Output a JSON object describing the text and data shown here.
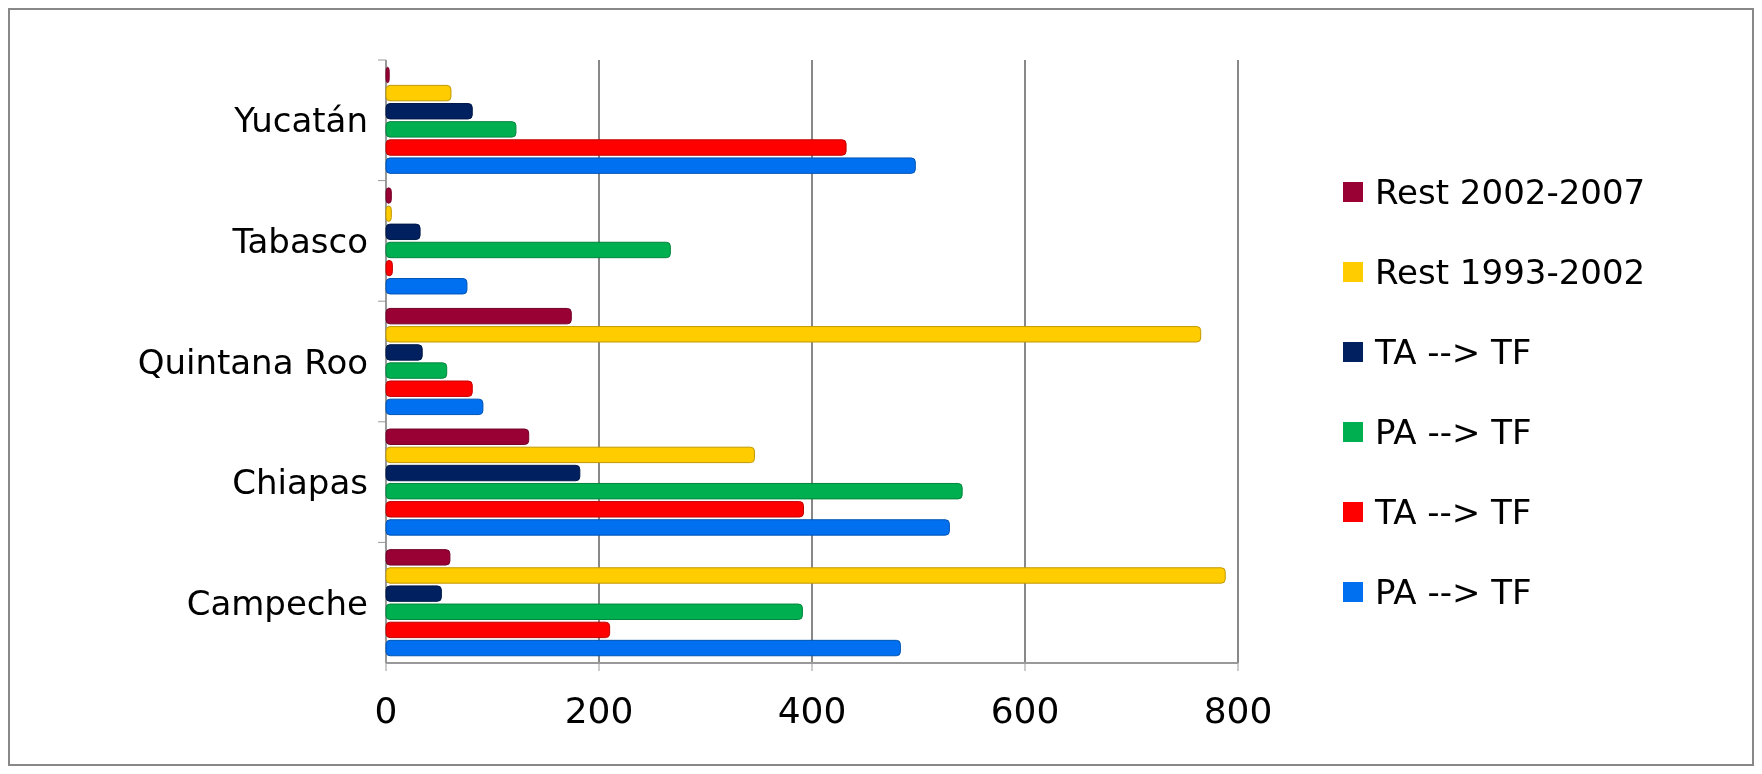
{
  "chart_data": {
    "type": "bar",
    "orientation": "horizontal",
    "categories": [
      "Yucatán",
      "Tabasco",
      "Quintana Roo",
      "Chiapas",
      "Campeche"
    ],
    "series": [
      {
        "name": "Rest 2002-2007",
        "color": "#990033",
        "values": [
          3,
          5,
          174,
          134,
          60
        ]
      },
      {
        "name": "Rest 1993-2002",
        "color": "#ffcc00",
        "values": [
          61,
          5,
          765,
          346,
          788
        ]
      },
      {
        "name": "TA --> TF",
        "color": "#002060",
        "values": [
          81,
          32,
          34,
          182,
          52
        ]
      },
      {
        "name": "PA --> TF",
        "color": "#00b050",
        "values": [
          122,
          267,
          57,
          541,
          391
        ]
      },
      {
        "name": "TA --> TF",
        "color": "#ff0000",
        "values": [
          432,
          6,
          81,
          392,
          210
        ]
      },
      {
        "name": "PA --> TF",
        "color": "#0070f0",
        "values": [
          497,
          76,
          91,
          529,
          483
        ]
      }
    ],
    "xlim": [
      0,
      800
    ],
    "xticks": [
      0,
      200,
      400,
      600,
      800
    ],
    "grid": "x",
    "legend": "right"
  }
}
